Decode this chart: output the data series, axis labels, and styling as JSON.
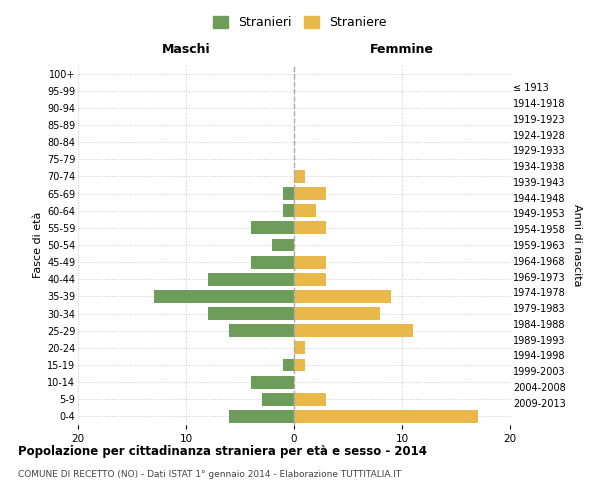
{
  "age_groups": [
    "0-4",
    "5-9",
    "10-14",
    "15-19",
    "20-24",
    "25-29",
    "30-34",
    "35-39",
    "40-44",
    "45-49",
    "50-54",
    "55-59",
    "60-64",
    "65-69",
    "70-74",
    "75-79",
    "80-84",
    "85-89",
    "90-94",
    "95-99",
    "100+"
  ],
  "birth_years": [
    "2009-2013",
    "2004-2008",
    "1999-2003",
    "1994-1998",
    "1989-1993",
    "1984-1988",
    "1979-1983",
    "1974-1978",
    "1969-1973",
    "1964-1968",
    "1959-1963",
    "1954-1958",
    "1949-1953",
    "1944-1948",
    "1939-1943",
    "1934-1938",
    "1929-1933",
    "1924-1928",
    "1919-1923",
    "1914-1918",
    "≤ 1913"
  ],
  "maschi": [
    6,
    3,
    4,
    1,
    0,
    6,
    8,
    13,
    8,
    4,
    2,
    4,
    1,
    1,
    0,
    0,
    0,
    0,
    0,
    0,
    0
  ],
  "femmine": [
    17,
    3,
    0,
    1,
    1,
    11,
    8,
    9,
    3,
    3,
    0,
    3,
    2,
    3,
    1,
    0,
    0,
    0,
    0,
    0,
    0
  ],
  "maschi_color": "#6e9c5a",
  "femmine_color": "#e8b84b",
  "title": "Popolazione per cittadinanza straniera per età e sesso - 2014",
  "subtitle": "COMUNE DI RECETTO (NO) - Dati ISTAT 1° gennaio 2014 - Elaborazione TUTTITALIA.IT",
  "xlabel_maschi": "Maschi",
  "xlabel_femmine": "Femmine",
  "ylabel": "Fasce di età",
  "ylabel_right": "Anni di nascita",
  "legend_maschi": "Stranieri",
  "legend_femmine": "Straniere",
  "xlim": 20,
  "background_color": "#ffffff",
  "grid_color": "#cccccc",
  "bar_height": 0.75
}
